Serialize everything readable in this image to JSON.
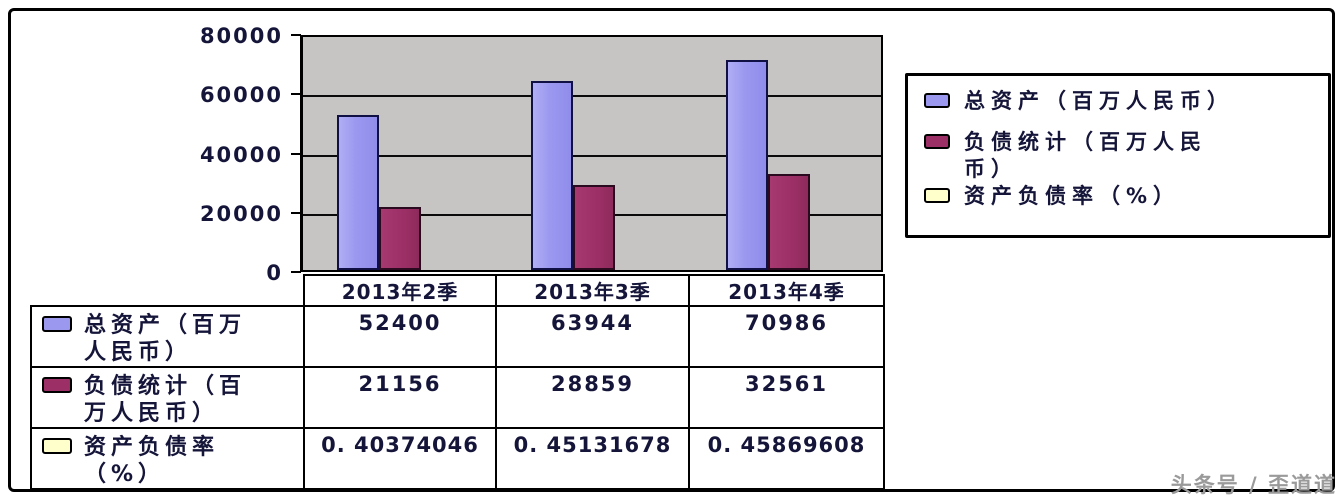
{
  "watermark": "头条号 / 歪道道",
  "chart_data": {
    "type": "bar",
    "title": "",
    "categories": [
      "2013年2季",
      "2013年3季",
      "2013年4季"
    ],
    "series": [
      {
        "name": "总资产（百万人民币）",
        "color": "#9a98ef",
        "values": [
          52400,
          63944,
          70986
        ]
      },
      {
        "name": "负债统计（百万人民币）",
        "color": "#9c3066",
        "values": [
          21156,
          28859,
          32561
        ]
      },
      {
        "name": "资产负债率（%）",
        "color": "#ffffcc",
        "values": [
          0.40374046,
          0.45131678,
          0.45869608
        ]
      }
    ],
    "xlabel": "",
    "ylabel": "",
    "ylim": [
      0,
      80000
    ],
    "yticks": [
      0,
      20000,
      40000,
      60000,
      80000
    ],
    "grid": true,
    "plot_background": "#c6c5c3",
    "legend_position": "right",
    "has_data_table": true
  },
  "legend": {
    "items": [
      {
        "label": "总资产（百万人民币）",
        "color": "#9a98ef"
      },
      {
        "label": "负债统计（百万人民\n币）",
        "color": "#9c3066"
      },
      {
        "label": "资产负债率（%）",
        "color": "#ffffcc"
      }
    ]
  },
  "table": {
    "columns": [
      "2013年2季",
      "2013年3季",
      "2013年4季"
    ],
    "rows": [
      {
        "label_display": "总资产（百万\n人民币）",
        "values": [
          "52400",
          "63944",
          "70986"
        ]
      },
      {
        "label_display": "负债统计（百\n万人民币）",
        "values": [
          "21156",
          "28859",
          "32561"
        ]
      },
      {
        "label_display": "资产负债率\n （%）",
        "values": [
          "0. 40374046",
          "0. 45131678",
          "0. 45869608"
        ]
      }
    ]
  }
}
